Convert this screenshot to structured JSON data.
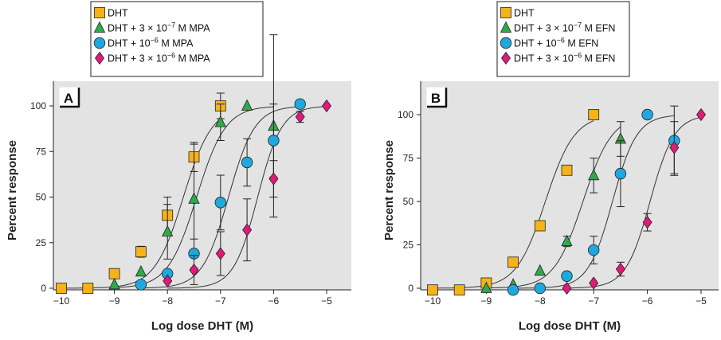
{
  "chart_data": [
    {
      "type": "scatter",
      "panel_label": "A",
      "xlabel": "Log dose DHT (M)",
      "ylabel": "Percent response",
      "xlim": [
        -10,
        -5
      ],
      "ylim": [
        0,
        100
      ],
      "x_ticks": [
        "−10",
        "−9",
        "−8",
        "−7",
        "−6",
        "−5"
      ],
      "y_ticks": [
        "0",
        "25",
        "50",
        "75",
        "100"
      ],
      "legend": {
        "placement": "top",
        "items": [
          {
            "label": "DHT"
          },
          {
            "label": "DHT + 3 × 10",
            "sup": "−7",
            "suffix": " M MPA"
          },
          {
            "label": "DHT + 10",
            "sup": "−6",
            "suffix": " M MPA"
          },
          {
            "label": "DHT + 3 × 10",
            "sup": "−6",
            "suffix": " M MPA"
          }
        ]
      },
      "series": [
        {
          "marker": "square",
          "color": "#f5b31a",
          "ec50": -7.7,
          "hill": 1.0,
          "points": [
            {
              "x": -10,
              "y": 0
            },
            {
              "x": -9.5,
              "y": 0
            },
            {
              "x": -9,
              "y": 8,
              "err": 1
            },
            {
              "x": -8.5,
              "y": 20,
              "err": 3
            },
            {
              "x": -8,
              "y": 40,
              "err": 10
            },
            {
              "x": -7.5,
              "y": 72,
              "err": 8
            },
            {
              "x": -7,
              "y": 100,
              "err": 7
            }
          ]
        },
        {
          "marker": "triangle",
          "color": "#2eaa4a",
          "ec50": -7.45,
          "hill": 1.0,
          "points": [
            {
              "x": -9,
              "y": 2
            },
            {
              "x": -8.5,
              "y": 9
            },
            {
              "x": -8,
              "y": 31,
              "err": 15
            },
            {
              "x": -7.5,
              "y": 49,
              "err": 30
            },
            {
              "x": -7,
              "y": 91,
              "err": 10
            },
            {
              "x": -6.5,
              "y": 100
            },
            {
              "x": -6,
              "y": 89,
              "err": 50
            }
          ]
        },
        {
          "marker": "circle",
          "color": "#1fa8df",
          "ec50": -6.85,
          "hill": 1.1,
          "points": [
            {
              "x": -8.5,
              "y": 2
            },
            {
              "x": -8,
              "y": 8
            },
            {
              "x": -7.5,
              "y": 19,
              "err": 8
            },
            {
              "x": -7,
              "y": 47,
              "err": 15
            },
            {
              "x": -6.5,
              "y": 69,
              "err": 13
            },
            {
              "x": -6,
              "y": 81,
              "err": 20
            },
            {
              "x": -5.5,
              "y": 101
            }
          ]
        },
        {
          "marker": "diamond",
          "color": "#e0197a",
          "ec50": -6.3,
          "hill": 1.2,
          "points": [
            {
              "x": -8,
              "y": 4
            },
            {
              "x": -7.5,
              "y": 10,
              "err": 8
            },
            {
              "x": -7,
              "y": 19,
              "err": 12
            },
            {
              "x": -6.5,
              "y": 32,
              "err": 17
            },
            {
              "x": -6,
              "y": 60,
              "err": 10
            },
            {
              "x": -5.5,
              "y": 94,
              "err": 3
            },
            {
              "x": -5,
              "y": 100
            }
          ]
        }
      ]
    },
    {
      "type": "scatter",
      "panel_label": "B",
      "xlabel": "Log dose DHT (M)",
      "ylabel": "Percent response",
      "xlim": [
        -10,
        -5
      ],
      "ylim": [
        0,
        100
      ],
      "x_ticks": [
        "−10",
        "−9",
        "−8",
        "−7",
        "−6",
        "−5"
      ],
      "y_ticks": [
        "0",
        "25",
        "50",
        "75",
        "100"
      ],
      "legend": {
        "placement": "top",
        "items": [
          {
            "label": "DHT"
          },
          {
            "label": "DHT + 3 × 10",
            "sup": "−7",
            "suffix": " M EFN"
          },
          {
            "label": "DHT + 10",
            "sup": "−6",
            "suffix": " M EFN"
          },
          {
            "label": "DHT + 3 × 10",
            "sup": "−6",
            "suffix": " M EFN"
          }
        ]
      },
      "series": [
        {
          "marker": "square",
          "color": "#f5b31a",
          "ec50": -7.9,
          "hill": 1.0,
          "points": [
            {
              "x": -10,
              "y": -1
            },
            {
              "x": -9.5,
              "y": -1
            },
            {
              "x": -9,
              "y": 3
            },
            {
              "x": -8.5,
              "y": 15
            },
            {
              "x": -8,
              "y": 36
            },
            {
              "x": -7.5,
              "y": 68
            },
            {
              "x": -7,
              "y": 100
            }
          ]
        },
        {
          "marker": "triangle",
          "color": "#2eaa4a",
          "ec50": -7.2,
          "hill": 1.0,
          "points": [
            {
              "x": -9,
              "y": 0
            },
            {
              "x": -8.5,
              "y": 2
            },
            {
              "x": -8,
              "y": 10
            },
            {
              "x": -7.5,
              "y": 27,
              "err": 3
            },
            {
              "x": -7,
              "y": 65,
              "err": 10
            },
            {
              "x": -6.5,
              "y": 86,
              "err": 10
            }
          ]
        },
        {
          "marker": "circle",
          "color": "#1fa8df",
          "ec50": -6.65,
          "hill": 1.2,
          "points": [
            {
              "x": -8.5,
              "y": -1
            },
            {
              "x": -8,
              "y": 0
            },
            {
              "x": -7.5,
              "y": 7
            },
            {
              "x": -7,
              "y": 22,
              "err": 8
            },
            {
              "x": -6.5,
              "y": 66,
              "err": 19
            },
            {
              "x": -6,
              "y": 100
            },
            {
              "x": -5.5,
              "y": 85,
              "err": 20
            }
          ]
        },
        {
          "marker": "diamond",
          "color": "#e0197a",
          "ec50": -5.95,
          "hill": 1.2,
          "points": [
            {
              "x": -7.5,
              "y": 0
            },
            {
              "x": -7,
              "y": 3
            },
            {
              "x": -6.5,
              "y": 11,
              "err": 4
            },
            {
              "x": -6,
              "y": 38,
              "err": 5
            },
            {
              "x": -5.5,
              "y": 81,
              "err": 15
            },
            {
              "x": -5,
              "y": 100
            }
          ]
        }
      ]
    }
  ]
}
